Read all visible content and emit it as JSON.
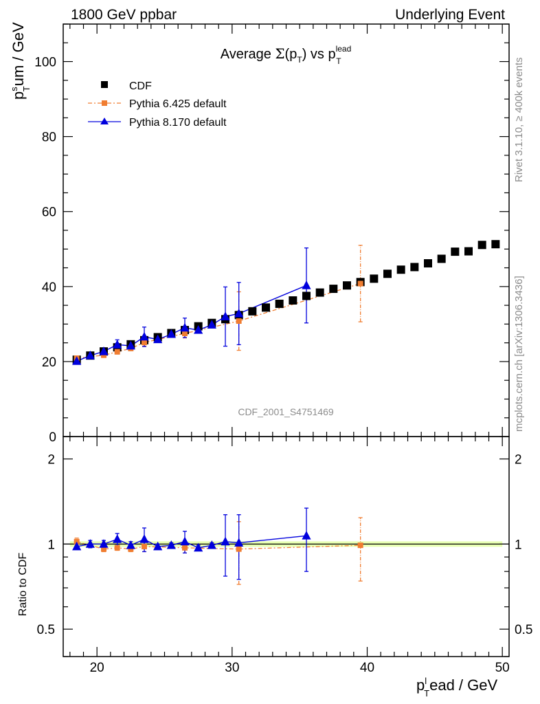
{
  "header": {
    "left": "1800 GeV ppbar",
    "right": "Underlying Event"
  },
  "side_notes": {
    "rivet": "Rivet 3.1.10, ≥ 400k events",
    "mcplots": "mcplots.cern.ch [arXiv:1306.3436]"
  },
  "analysis_id": "CDF_2001_S4751469",
  "chart_data": [
    {
      "type": "scatter",
      "panel": "main",
      "title": "Average Σ(p_T) vs p_T^lead",
      "xlabel": "p_T^lead / GeV",
      "ylabel": "p_T^sum / GeV",
      "xlim": [
        17.5,
        50.5
      ],
      "ylim": [
        0,
        110
      ],
      "x_ticks": [
        20,
        30,
        40,
        50
      ],
      "y_ticks": [
        0,
        20,
        40,
        60,
        80,
        100
      ],
      "x_tick_labels": [
        "20",
        "30",
        "40",
        "50"
      ],
      "y_tick_labels": [
        "0",
        "20",
        "40",
        "60",
        "80",
        "100"
      ],
      "legend_position": "top-left",
      "series": [
        {
          "name": "CDF",
          "style": "black-square",
          "color": "#000000",
          "x": [
            18.5,
            19.5,
            20.5,
            21.5,
            22.5,
            23.5,
            24.5,
            25.5,
            26.5,
            27.5,
            28.5,
            29.5,
            30.5,
            31.5,
            32.5,
            33.5,
            34.5,
            35.5,
            36.5,
            37.5,
            38.5,
            39.5,
            40.5,
            41.5,
            42.5,
            43.5,
            44.5,
            45.5,
            46.5,
            47.5,
            48.5,
            49.5
          ],
          "y": [
            20.5,
            21.6,
            22.7,
            23.8,
            24.6,
            25.7,
            26.5,
            27.6,
            28.4,
            29.4,
            30.3,
            31.3,
            32.4,
            33.4,
            34.4,
            35.4,
            36.3,
            37.5,
            38.4,
            39.4,
            40.3,
            41.2,
            42.1,
            43.4,
            44.5,
            45.2,
            46.2,
            47.4,
            49.3,
            49.4,
            51.1,
            51.3
          ],
          "err": []
        },
        {
          "name": "Pythia 6.425 default",
          "style": "orange-square-dashdot",
          "color": "#f07d31",
          "x": [
            18.5,
            20.5,
            21.5,
            22.5,
            23.5,
            26.5,
            30.5,
            39.5
          ],
          "y": [
            20.9,
            21.7,
            22.6,
            23.5,
            25.1,
            27.5,
            30.8,
            40.8
          ],
          "err": [
            0.6,
            0.6,
            0.6,
            0.6,
            1.0,
            1.2,
            7.8,
            10.2
          ]
        },
        {
          "name": "Pythia 8.170 default",
          "style": "blue-triangle-solid",
          "color": "#0000dd",
          "x": [
            18.5,
            19.5,
            20.5,
            21.5,
            22.5,
            23.5,
            24.5,
            25.5,
            26.5,
            27.5,
            28.5,
            29.5,
            30.5,
            35.5
          ],
          "y": [
            20.1,
            21.6,
            22.7,
            24.5,
            24.2,
            26.6,
            25.9,
            27.3,
            29.0,
            28.4,
            29.8,
            32.0,
            32.8,
            40.3
          ],
          "err": [
            0.4,
            0.6,
            0.7,
            1.3,
            0.8,
            2.6,
            0.7,
            0.6,
            2.6,
            0.6,
            0.6,
            7.9,
            8.3,
            10.0
          ]
        }
      ]
    },
    {
      "type": "scatter",
      "panel": "ratio",
      "xlabel": "p_T^lead / GeV",
      "ylabel": "Ratio to CDF",
      "xlim": [
        17.5,
        50.5
      ],
      "ylim": [
        0.4,
        2.4
      ],
      "y_scale": "log",
      "y_ticks": [
        0.5,
        1,
        2
      ],
      "y_tick_labels": [
        "0.5",
        "1",
        "2"
      ],
      "reference_line": 1.0,
      "series": [
        {
          "name": "Pythia 6.425 default",
          "color": "#f07d31",
          "x": [
            18.5,
            20.5,
            21.5,
            22.5,
            23.5,
            26.5,
            30.5,
            39.5
          ],
          "y": [
            1.02,
            0.96,
            0.97,
            0.96,
            0.98,
            0.97,
            0.96,
            0.99
          ],
          "err": [
            0.03,
            0.02,
            0.02,
            0.02,
            0.04,
            0.04,
            0.24,
            0.25
          ]
        },
        {
          "name": "Pythia 8.170 default",
          "color": "#0000dd",
          "x": [
            18.5,
            19.5,
            20.5,
            21.5,
            22.5,
            23.5,
            24.5,
            25.5,
            26.5,
            27.5,
            28.5,
            29.5,
            30.5,
            35.5
          ],
          "y": [
            0.98,
            1.0,
            1.0,
            1.04,
            0.99,
            1.04,
            0.98,
            0.99,
            1.02,
            0.97,
            0.99,
            1.02,
            1.01,
            1.07
          ],
          "err": [
            0.02,
            0.03,
            0.03,
            0.05,
            0.03,
            0.1,
            0.02,
            0.02,
            0.09,
            0.02,
            0.02,
            0.25,
            0.26,
            0.27
          ]
        }
      ]
    }
  ]
}
